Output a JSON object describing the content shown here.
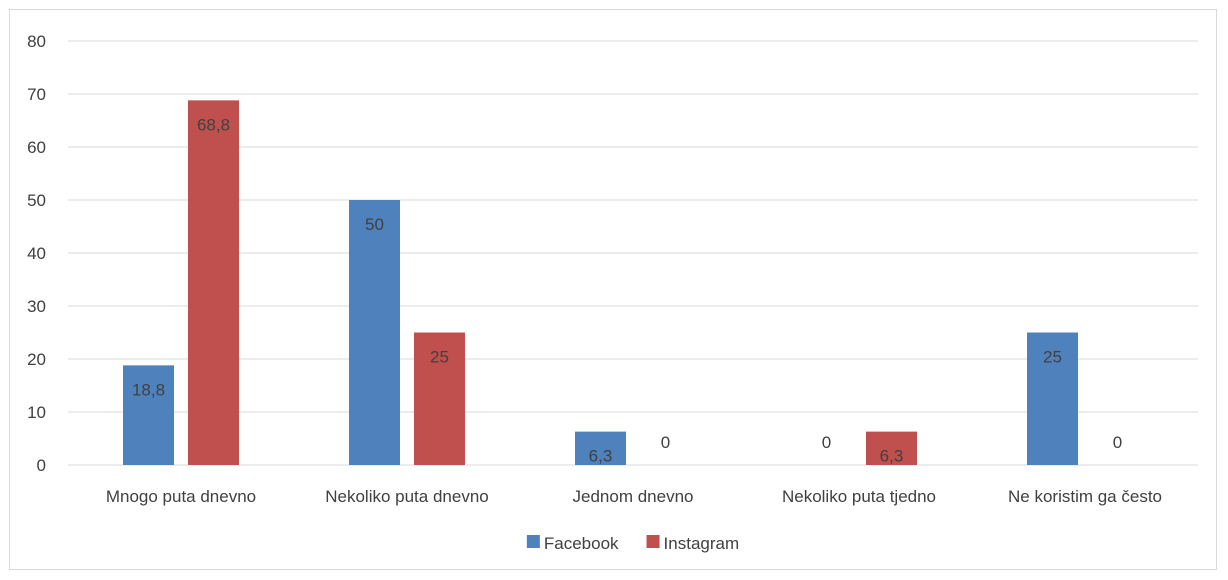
{
  "chart_data": {
    "type": "bar",
    "categories": [
      "Mnogo puta dnevno",
      "Nekoliko puta dnevno",
      "Jednom dnevno",
      "Nekoliko puta tjedno",
      "Ne koristim ga često"
    ],
    "series": [
      {
        "name": "Facebook",
        "values": [
          18.8,
          50,
          6.3,
          0,
          25
        ],
        "labels": [
          "18,8",
          "50",
          "6,3",
          "0",
          "25"
        ],
        "color": "#4f81bd"
      },
      {
        "name": "Instagram",
        "values": [
          68.8,
          25,
          0,
          6.3,
          0
        ],
        "labels": [
          "68,8",
          "25",
          "0",
          "6,3",
          "0"
        ],
        "color": "#c0504d"
      }
    ],
    "ylim": [
      0,
      80
    ],
    "yticks": [
      0,
      10,
      20,
      30,
      40,
      50,
      60,
      70,
      80
    ],
    "grid": true,
    "legend_position": "bottom",
    "gridline_color": "#d9d9d9",
    "text_color": "#404040"
  }
}
